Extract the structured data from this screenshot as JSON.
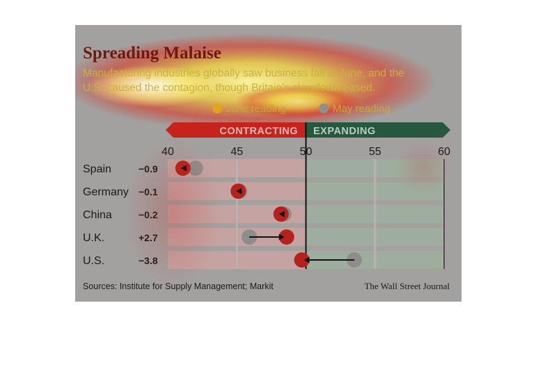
{
  "chart_data": {
    "type": "dot-arrow",
    "title": "Spreading Malaise",
    "subtitle_line1": "Manufacturing industries globally saw business fall in June, and the",
    "subtitle_line2": "U.S. caused the contagion, though Britain's slowdown eased.",
    "legend": [
      {
        "label": "June reading",
        "color": "#e2a41a"
      },
      {
        "label": "May reading",
        "color": "#8f8f8f"
      }
    ],
    "zone_labels": {
      "left": "CONTRACTING",
      "right": "EXPANDING"
    },
    "x_ticks": [
      40,
      45,
      50,
      55,
      60
    ],
    "xlim": [
      40,
      60
    ],
    "threshold": 50,
    "rows": [
      {
        "country": "Spain",
        "change": "−0.9",
        "may": 42.0,
        "june": 41.1
      },
      {
        "country": "Germany",
        "change": "−0.1",
        "may": 45.2,
        "june": 45.1
      },
      {
        "country": "China",
        "change": "−0.2",
        "may": 48.4,
        "june": 48.2
      },
      {
        "country": "U.K.",
        "change": "+2.7",
        "may": 45.9,
        "june": 48.6
      },
      {
        "country": "U.S.",
        "change": "−3.8",
        "may": 53.5,
        "june": 49.7
      }
    ],
    "source": "Sources: Institute for Supply Management; Markit",
    "credit": "The Wall Street Journal"
  },
  "colors": {
    "title": "#6e1a12",
    "subtitle": "#c9b23a",
    "contracting": "#c8221c",
    "expanding": "#27573f",
    "june_dot": "#b5221c",
    "may_dot": "#8f8d8c",
    "track_left": "#c5a3a2",
    "track_right": "#9fad9e",
    "text_dark": "#1a1a1a"
  }
}
